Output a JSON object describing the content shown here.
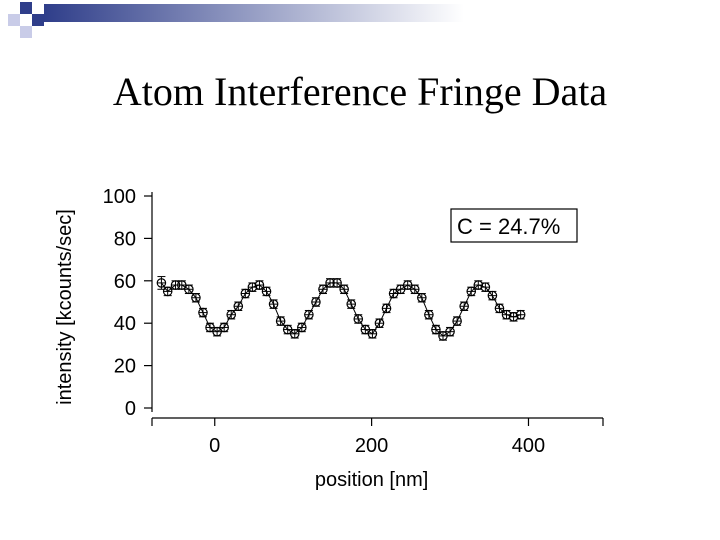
{
  "slide": {
    "title": "Atom Interference Fringe Data"
  },
  "colors": {
    "deco_dark": "#2f3e8a",
    "deco_light": "#c9cce8",
    "ink": "#000000"
  },
  "chart_data": {
    "type": "scatter",
    "xlabel": "position [nm]",
    "ylabel": "intensity [kcounts/sec]",
    "xlim": [
      -80,
      495
    ],
    "ylim": [
      0,
      100
    ],
    "x_ticks": [
      0,
      200,
      400
    ],
    "y_ticks": [
      0,
      20,
      40,
      60,
      80,
      100
    ],
    "annotation": "C = 24.7%",
    "grid": false,
    "series": [
      {
        "style": "markers with error bars joined by a thin line",
        "x": [
          -68,
          -60,
          -50,
          -42,
          -33,
          -24,
          -15,
          -6,
          3,
          12,
          21,
          30,
          39,
          48,
          57,
          66,
          75,
          84,
          93,
          102,
          111,
          120,
          129,
          138,
          147,
          156,
          165,
          174,
          183,
          192,
          201,
          210,
          219,
          228,
          237,
          246,
          255,
          264,
          273,
          282,
          291,
          300,
          309,
          318,
          327,
          336,
          345,
          354,
          363,
          372,
          381,
          390
        ],
        "y": [
          59,
          55,
          58,
          58,
          56,
          52,
          45,
          38,
          36,
          38,
          44,
          48,
          54,
          57,
          58,
          55,
          49,
          41,
          37,
          35,
          38,
          44,
          50,
          56,
          59,
          59,
          56,
          49,
          42,
          37,
          35,
          40,
          47,
          54,
          56,
          58,
          56,
          52,
          44,
          37,
          34,
          36,
          41,
          48,
          55,
          58,
          57,
          53,
          47,
          44,
          43,
          44
        ],
        "y_error": [
          3,
          2,
          2,
          2,
          2,
          2,
          2,
          2,
          2,
          2,
          2,
          2,
          2,
          2,
          2,
          2,
          2,
          2,
          2,
          2,
          2,
          2,
          2,
          2,
          2,
          2,
          2,
          2,
          2,
          2,
          2,
          2,
          2,
          2,
          2,
          2,
          2,
          2,
          2,
          2,
          2,
          2,
          2,
          2,
          2,
          2,
          2,
          2,
          2,
          2,
          2,
          2
        ]
      }
    ]
  }
}
